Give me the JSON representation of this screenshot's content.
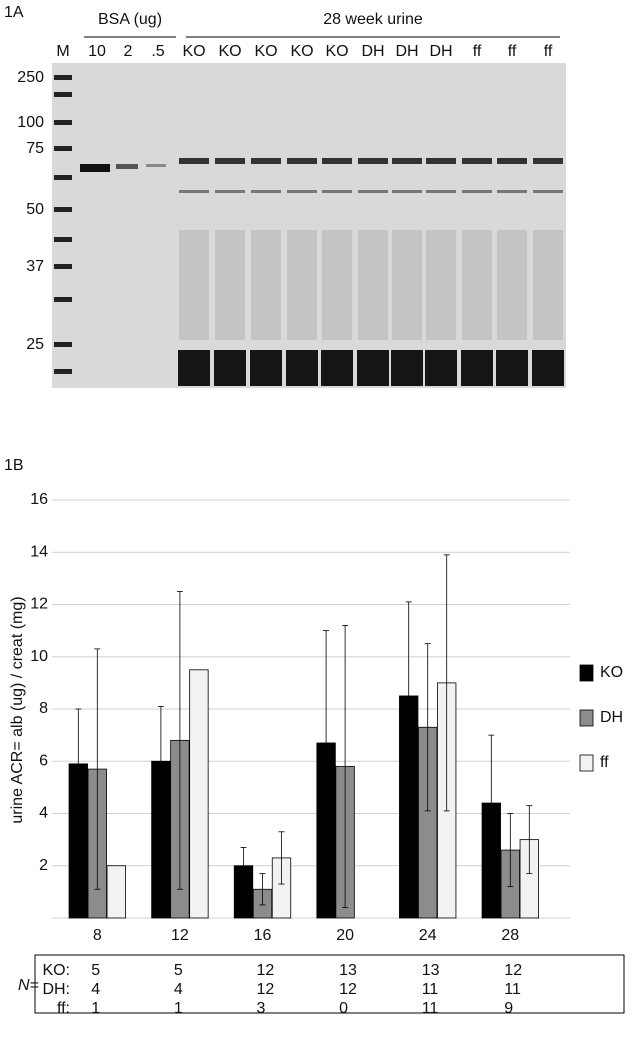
{
  "gel": {
    "panel_label": "1A",
    "groups": [
      {
        "label": "BSA (ug)"
      },
      {
        "label": "28 week urine"
      }
    ],
    "lanes": [
      "M",
      "10",
      "2",
      ".5",
      "KO",
      "KO",
      "KO",
      "KO",
      "KO",
      "DH",
      "DH",
      "DH",
      "ff",
      "ff",
      "ff"
    ],
    "markers": [
      "250",
      "100",
      "75",
      "50",
      "37",
      "25"
    ]
  },
  "chart_data": {
    "type": "bar",
    "panel_label": "1B",
    "y_label": "urine ACR= alb (ug) / creat (mg)",
    "categories": [
      "8",
      "12",
      "16",
      "20",
      "24",
      "28"
    ],
    "series": [
      {
        "name": "KO",
        "color": "#000000",
        "values": [
          5.9,
          6.0,
          2.0,
          6.7,
          8.5,
          4.4
        ],
        "errors": [
          2.1,
          2.1,
          0.7,
          4.3,
          3.6,
          2.6
        ]
      },
      {
        "name": "DH",
        "color": "#8c8c8c",
        "values": [
          5.7,
          6.8,
          1.1,
          5.8,
          7.3,
          2.6
        ],
        "errors": [
          4.6,
          5.7,
          0.6,
          5.4,
          3.2,
          1.4
        ]
      },
      {
        "name": "ff",
        "color": "#f2f2f2",
        "values": [
          2.0,
          9.5,
          2.3,
          null,
          9.0,
          3.0
        ],
        "errors": [
          null,
          null,
          1.0,
          null,
          4.9,
          1.3
        ]
      }
    ],
    "ylim": [
      0,
      16
    ],
    "yticks": [
      2,
      4,
      6,
      8,
      10,
      12,
      14,
      16
    ],
    "grid": true,
    "legend": "right",
    "n_table": {
      "label": "N=",
      "rows": [
        {
          "name": "KO:",
          "values": [
            "5",
            "5",
            "12",
            "13",
            "13",
            "12"
          ]
        },
        {
          "name": "DH:",
          "values": [
            "4",
            "4",
            "12",
            "12",
            "11",
            "11"
          ]
        },
        {
          "name": "ff:",
          "values": [
            "1",
            "1",
            "3",
            "0",
            "11",
            "9"
          ]
        }
      ]
    }
  }
}
